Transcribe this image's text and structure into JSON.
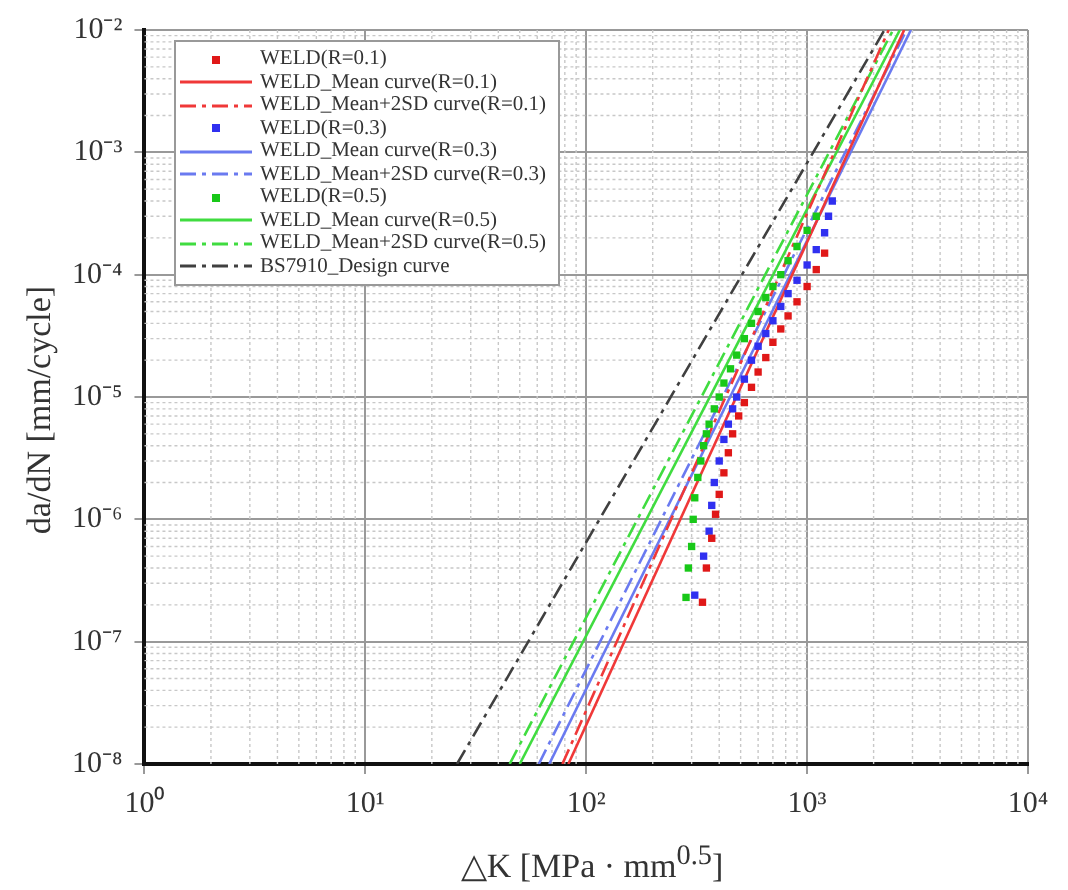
{
  "chart_data": {
    "type": "scatter",
    "xlabel": "△K [MPa · mm$^{0.5}$]",
    "ylabel": "da/dN [mm/cycle]",
    "log": "xy",
    "grid": true,
    "legend": "top left",
    "xlim": [
      1,
      10000
    ],
    "xticks": [
      {
        "value": 1,
        "label": "10⁰"
      },
      {
        "value": 10,
        "label": "10¹"
      },
      {
        "value": 100,
        "label": "10²"
      },
      {
        "value": 1000,
        "label": "10³"
      },
      {
        "value": 10000,
        "label": "10⁴"
      }
    ],
    "ylim": [
      1e-08,
      0.01
    ],
    "yticks": [
      {
        "value": 1e-08,
        "label": "10⁻⁸"
      },
      {
        "value": 1e-07,
        "label": "10⁻⁷"
      },
      {
        "value": 1e-06,
        "label": "10⁻⁶"
      },
      {
        "value": 1e-05,
        "label": "10⁻⁵"
      },
      {
        "value": 0.0001,
        "label": "10⁻⁴"
      },
      {
        "value": 0.001,
        "label": "10⁻³"
      },
      {
        "value": 0.01,
        "label": "10⁻²"
      }
    ],
    "series": [
      {
        "name": "WELD(R=0.1)",
        "marker": "square",
        "color": "#e01818",
        "x": [
          336,
          350,
          370,
          385,
          400,
          420,
          440,
          460,
          490,
          520,
          560,
          600,
          650,
          700,
          760,
          820,
          900,
          1000,
          1100,
          1200
        ],
        "values": [
          2.1e-07,
          4e-07,
          7e-07,
          1.1e-06,
          1.6e-06,
          2.4e-06,
          3.5e-06,
          5e-06,
          7e-06,
          9e-06,
          1.2e-05,
          1.6e-05,
          2.1e-05,
          2.8e-05,
          3.6e-05,
          4.6e-05,
          6e-05,
          8e-05,
          0.00011,
          0.00015
        ]
      },
      {
        "name": "WELD_Mean curve(R=0.1)",
        "type": "line",
        "marker": "none",
        "line_style": "solid",
        "color": "#f03838",
        "x": [
          83,
          2750
        ],
        "values": [
          1e-08,
          0.01
        ]
      },
      {
        "name": "WELD_Mean+2SD curve(R=0.1)",
        "type": "line",
        "marker": "none",
        "line_style": "dashdot",
        "color": "#f03838",
        "x": [
          78,
          2340
        ],
        "values": [
          1e-08,
          0.01
        ]
      },
      {
        "name": "WELD(R=0.3)",
        "marker": "square",
        "color": "#3030f0",
        "x": [
          310,
          340,
          360,
          370,
          380,
          400,
          420,
          440,
          460,
          480,
          520,
          560,
          600,
          650,
          700,
          760,
          820,
          900,
          1000,
          1100,
          1200,
          1250,
          1300
        ],
        "values": [
          2.4e-07,
          5e-07,
          8e-07,
          1.3e-06,
          2e-06,
          3e-06,
          4.5e-06,
          6e-06,
          8e-06,
          1e-05,
          1.4e-05,
          2e-05,
          2.6e-05,
          3.3e-05,
          4.2e-05,
          5.5e-05,
          7e-05,
          9e-05,
          0.00012,
          0.00016,
          0.00022,
          0.0003,
          0.0004
        ]
      },
      {
        "name": "WELD_Mean curve(R=0.3)",
        "type": "line",
        "marker": "none",
        "line_style": "solid",
        "color": "#6a7af0",
        "x": [
          68,
          2950
        ],
        "values": [
          1e-08,
          0.01
        ]
      },
      {
        "name": "WELD_Mean+2SD curve(R=0.3)",
        "type": "line",
        "marker": "none",
        "line_style": "dashdot",
        "color": "#6a7af0",
        "x": [
          61,
          2820
        ],
        "values": [
          1e-08,
          0.01
        ]
      },
      {
        "name": "WELD(R=0.5)",
        "marker": "square",
        "color": "#18c818",
        "x": [
          283,
          290,
          300,
          305,
          310,
          320,
          330,
          340,
          350,
          360,
          380,
          400,
          420,
          450,
          480,
          520,
          560,
          600,
          650,
          700,
          760,
          820,
          900,
          1000,
          1100
        ],
        "values": [
          2.3e-07,
          4e-07,
          6e-07,
          1e-06,
          1.5e-06,
          2.2e-06,
          3e-06,
          4e-06,
          5e-06,
          6e-06,
          8e-06,
          1e-05,
          1.3e-05,
          1.7e-05,
          2.2e-05,
          3e-05,
          4e-05,
          5e-05,
          6.5e-05,
          8e-05,
          0.0001,
          0.00013,
          0.00017,
          0.00023,
          0.0003
        ]
      },
      {
        "name": "WELD_Mean curve(R=0.5)",
        "type": "line",
        "marker": "none",
        "line_style": "solid",
        "color": "#40dc40",
        "x": [
          50,
          2630
        ],
        "values": [
          1e-08,
          0.01
        ]
      },
      {
        "name": "WELD_Mean+2SD curve(R=0.5)",
        "type": "line",
        "marker": "none",
        "line_style": "dashdot",
        "color": "#40dc40",
        "x": [
          45,
          2450
        ],
        "values": [
          1e-08,
          0.01
        ]
      },
      {
        "name": "BS7910_Design curve",
        "type": "line",
        "marker": "none",
        "line_style": "dashdot",
        "color": "#404040",
        "x": [
          26,
          2240
        ],
        "values": [
          1e-08,
          0.01
        ]
      }
    ]
  }
}
